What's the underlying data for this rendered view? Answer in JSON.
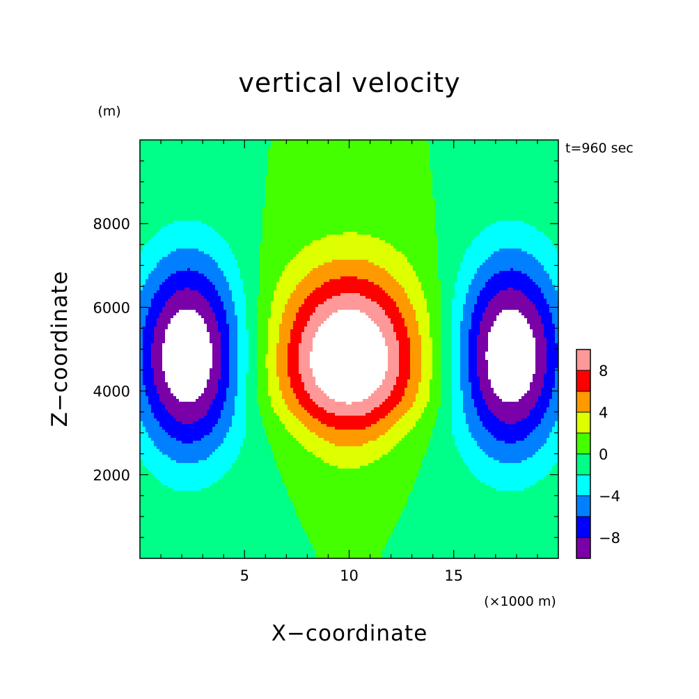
{
  "chart_data": {
    "type": "heatmap",
    "title": "vertical velocity",
    "time_label": "t=960 sec",
    "xlabel": "X−coordinate",
    "ylabel": "Z−coordinate",
    "x_unit": "(×1000 m)",
    "y_unit": "(m)",
    "xlim": [
      0,
      20
    ],
    "ylim": [
      0,
      10000
    ],
    "x_ticks": [
      {
        "value": 5,
        "label": "5"
      },
      {
        "value": 10,
        "label": "10"
      },
      {
        "value": 15,
        "label": "15"
      }
    ],
    "y_ticks": [
      {
        "value": 2000,
        "label": "2000"
      },
      {
        "value": 4000,
        "label": "4000"
      },
      {
        "value": 6000,
        "label": "6000"
      },
      {
        "value": 8000,
        "label": "8000"
      }
    ],
    "colorbar": {
      "levels": [
        -10,
        -8,
        -6,
        -4,
        -2,
        0,
        2,
        4,
        6,
        8,
        10
      ],
      "colors": [
        "#7a00a8",
        "#0000ff",
        "#0080ff",
        "#00ffff",
        "#00ff88",
        "#44ff00",
        "#ddff00",
        "#ff9900",
        "#ff0000",
        "#ff9999"
      ],
      "labels": [
        {
          "value": -8,
          "label": "−8"
        },
        {
          "value": -4,
          "label": "−4"
        },
        {
          "value": 0,
          "label": "0"
        },
        {
          "value": 4,
          "label": "4"
        },
        {
          "value": 8,
          "label": "8"
        }
      ],
      "above_max_color": "#ffffff",
      "below_min_color": "#ffffff"
    },
    "field": {
      "center_updraft": {
        "x": 10,
        "z_peak": 4500,
        "peak": 13.0
      },
      "side_downdrafts": [
        {
          "x": 2.5,
          "z_peak": 4800,
          "peak": -12.0
        },
        {
          "x": 17.5,
          "z_peak": 4800,
          "peak": -12.0
        }
      ],
      "description_grid": "w(x,z)"
    }
  }
}
